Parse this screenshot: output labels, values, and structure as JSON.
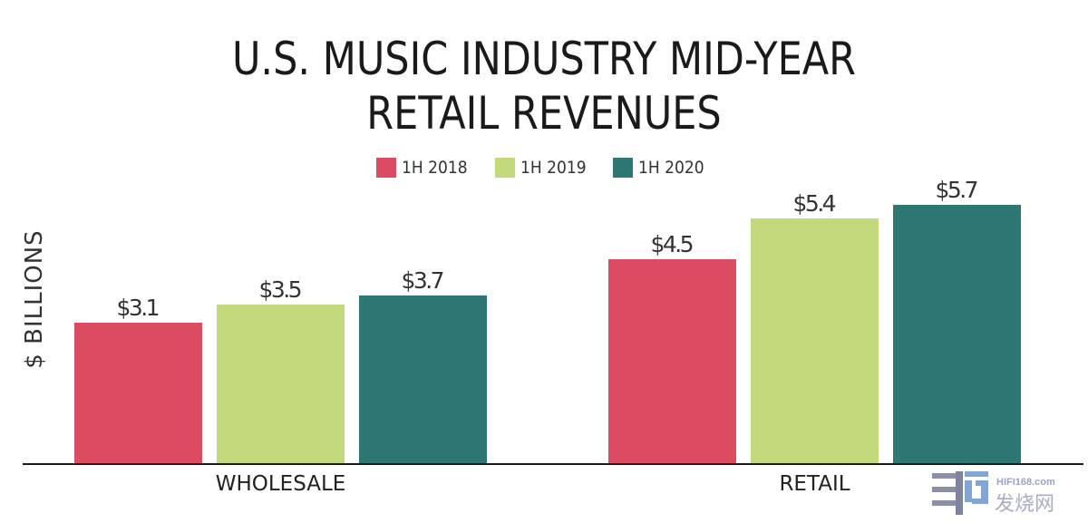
{
  "chart_data": {
    "type": "bar",
    "title": "U.S. MUSIC INDUSTRY MID-YEAR RETAIL REVENUES",
    "title_lines": [
      "U.S. MUSIC INDUSTRY MID-YEAR",
      "RETAIL REVENUES"
    ],
    "xlabel": "",
    "ylabel": "$ BILLIONS",
    "categories": [
      "WHOLESALE",
      "RETAIL"
    ],
    "series": [
      {
        "name": "1H 2018",
        "color": "#db4b62",
        "values": [
          3.1,
          4.5
        ],
        "labels": [
          "$3.1",
          "$4.5"
        ]
      },
      {
        "name": "1H 2019",
        "color": "#c3d97b",
        "values": [
          3.5,
          5.4
        ],
        "labels": [
          "$3.5",
          "$5.4"
        ]
      },
      {
        "name": "1H 2020",
        "color": "#2f7775",
        "values": [
          3.7,
          5.7
        ],
        "labels": [
          "$3.7",
          "$5.7"
        ]
      }
    ],
    "ylim": [
      0,
      6.5
    ],
    "grid": false,
    "legend_position": "top-center",
    "axis_color": "#1a1a1a"
  },
  "watermark": {
    "text_en": "HIFI168.com",
    "text_cn": "发烧网"
  }
}
